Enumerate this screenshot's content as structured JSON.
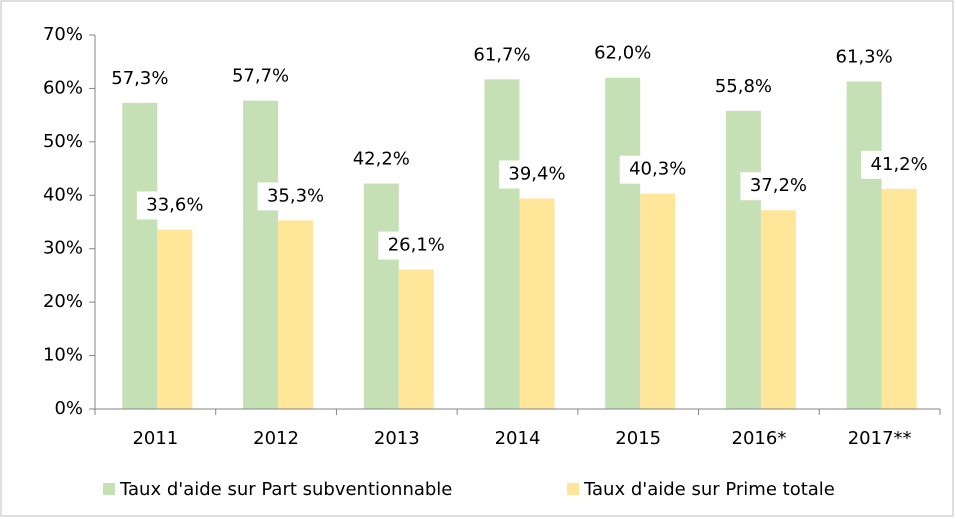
{
  "chart_data": {
    "type": "bar",
    "categories": [
      "2011",
      "2012",
      "2013",
      "2014",
      "2015",
      "2016*",
      "2017**"
    ],
    "series": [
      {
        "name": "Taux d'aide sur Part subventionnable",
        "color": "#c5e0b4",
        "values": [
          57.3,
          57.7,
          42.2,
          61.7,
          62.0,
          55.8,
          61.3
        ],
        "value_labels": [
          "57,3%",
          "57,7%",
          "42,2%",
          "61,7%",
          "62,0%",
          "55,8%",
          "61,3%"
        ]
      },
      {
        "name": "Taux d'aide sur Prime totale",
        "color": "#ffe699",
        "values": [
          33.6,
          35.3,
          26.1,
          39.4,
          40.3,
          37.2,
          41.2
        ],
        "value_labels": [
          "33,6%",
          "35,3%",
          "26,1%",
          "39,4%",
          "40,3%",
          "37,2%",
          "41,2%"
        ]
      }
    ],
    "ylim": [
      0,
      70
    ],
    "yticks": [
      {
        "value": 0,
        "label": "0%"
      },
      {
        "value": 10,
        "label": "10%"
      },
      {
        "value": 20,
        "label": "20%"
      },
      {
        "value": 30,
        "label": "30%"
      },
      {
        "value": 40,
        "label": "40%"
      },
      {
        "value": 50,
        "label": "50%"
      },
      {
        "value": 60,
        "label": "60%"
      },
      {
        "value": 70,
        "label": "70%"
      }
    ],
    "legend": "bottom"
  }
}
